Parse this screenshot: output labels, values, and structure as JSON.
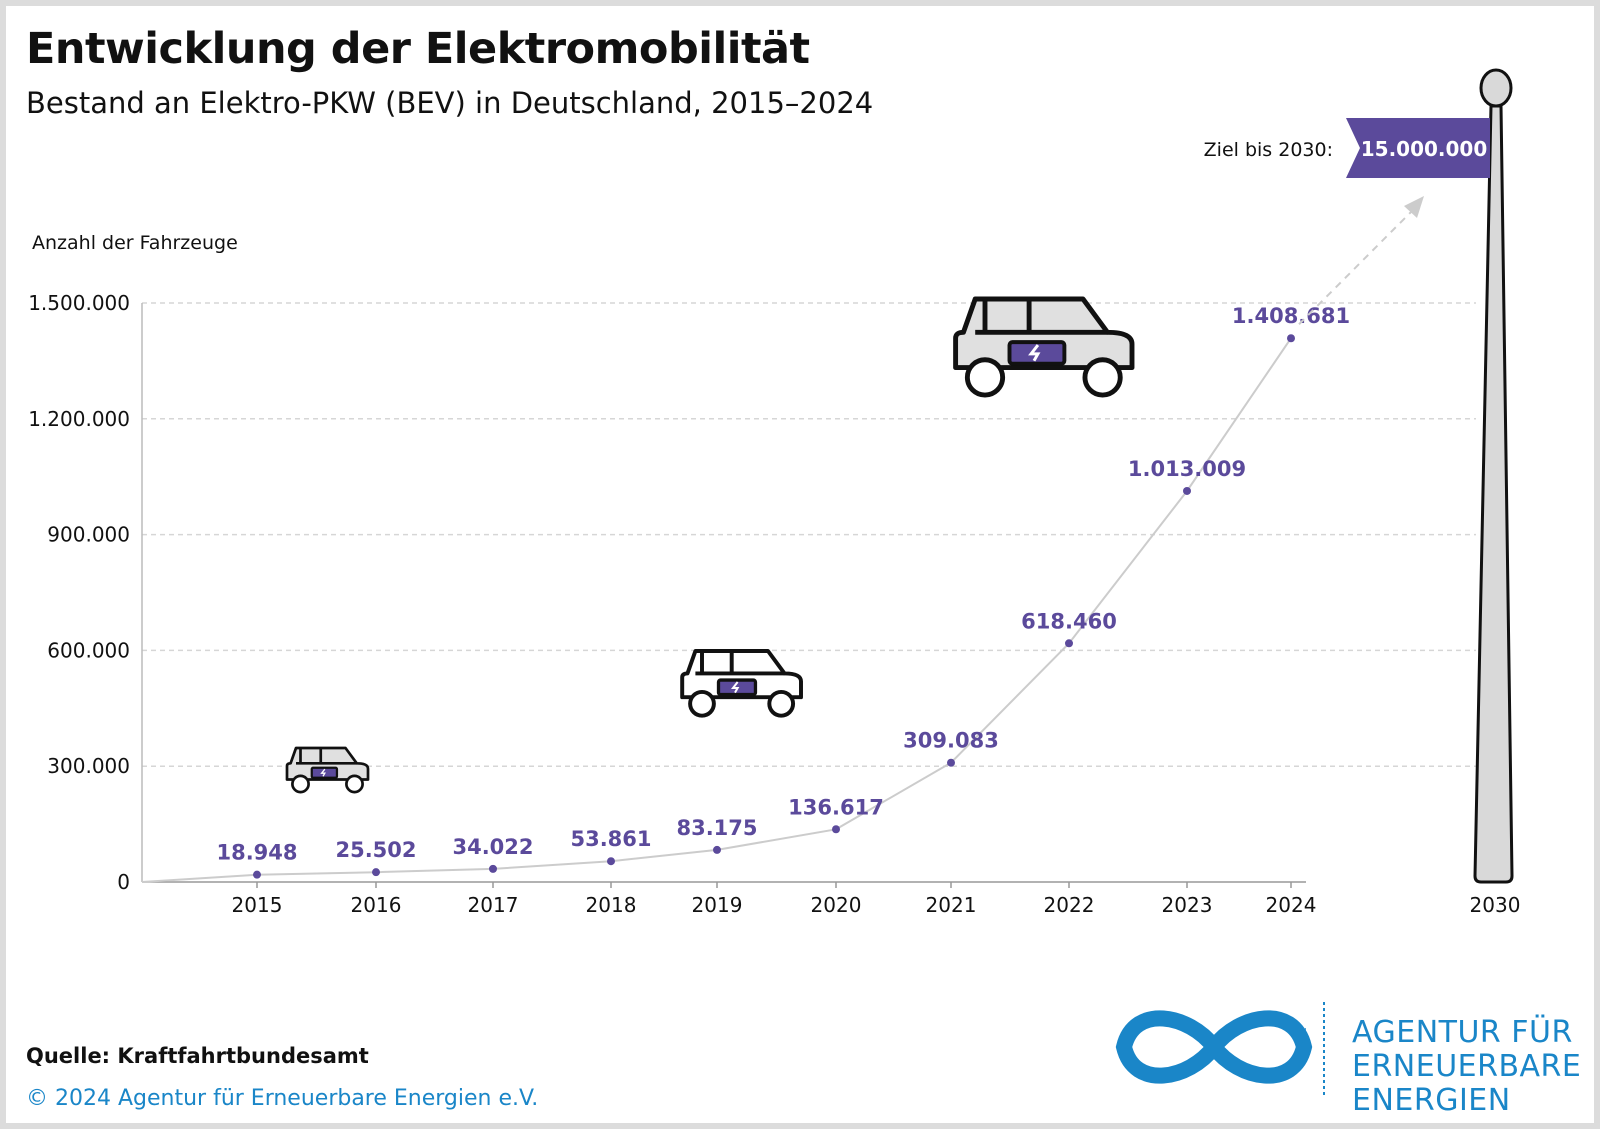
{
  "title": "Entwicklung der Elektromobilität",
  "subtitle": "Bestand an Elektro-PKW (BEV) in Deutschland, 2015–2024",
  "source": "Quelle: Kraftfahrtbundesamt",
  "copyright": "© 2024 Agentur für Erneuerbare Energien e.V.",
  "logo": {
    "lines": [
      "AGENTUR FÜR",
      "ERNEUERBARE",
      "ENERGIEN"
    ],
    "color": "#1a86c8"
  },
  "colors": {
    "accent": "#5b4a9b",
    "line": "#cccccc",
    "grid": "#d6d6d6",
    "pole": "#d9d9d9"
  },
  "chart_data": {
    "type": "line",
    "ylabel": "Anzahl der Fahrzeuge",
    "ylim": [
      0,
      1500000
    ],
    "yticks": [
      0,
      300000,
      600000,
      900000,
      1200000,
      1500000
    ],
    "ytick_labels": [
      "0",
      "300.000",
      "600.000",
      "900.000",
      "1.200.000",
      "1.500.000"
    ],
    "grid": "horizontal-dashed",
    "categories": [
      "2015",
      "2016",
      "2017",
      "2018",
      "2019",
      "2020",
      "2021",
      "2022",
      "2023",
      "2024"
    ],
    "values": [
      18948,
      25502,
      34022,
      53861,
      83175,
      136617,
      309083,
      618460,
      1013009,
      1408681
    ],
    "value_labels": [
      "18.948",
      "25.502",
      "34.022",
      "53.861",
      "83.175",
      "136.617",
      "309.083",
      "618.460",
      "1.013.009",
      "1.408.681"
    ],
    "target": {
      "year": "2030",
      "label": "Ziel bis 2030:",
      "value": 15000000,
      "value_label": "15.000.000"
    }
  }
}
